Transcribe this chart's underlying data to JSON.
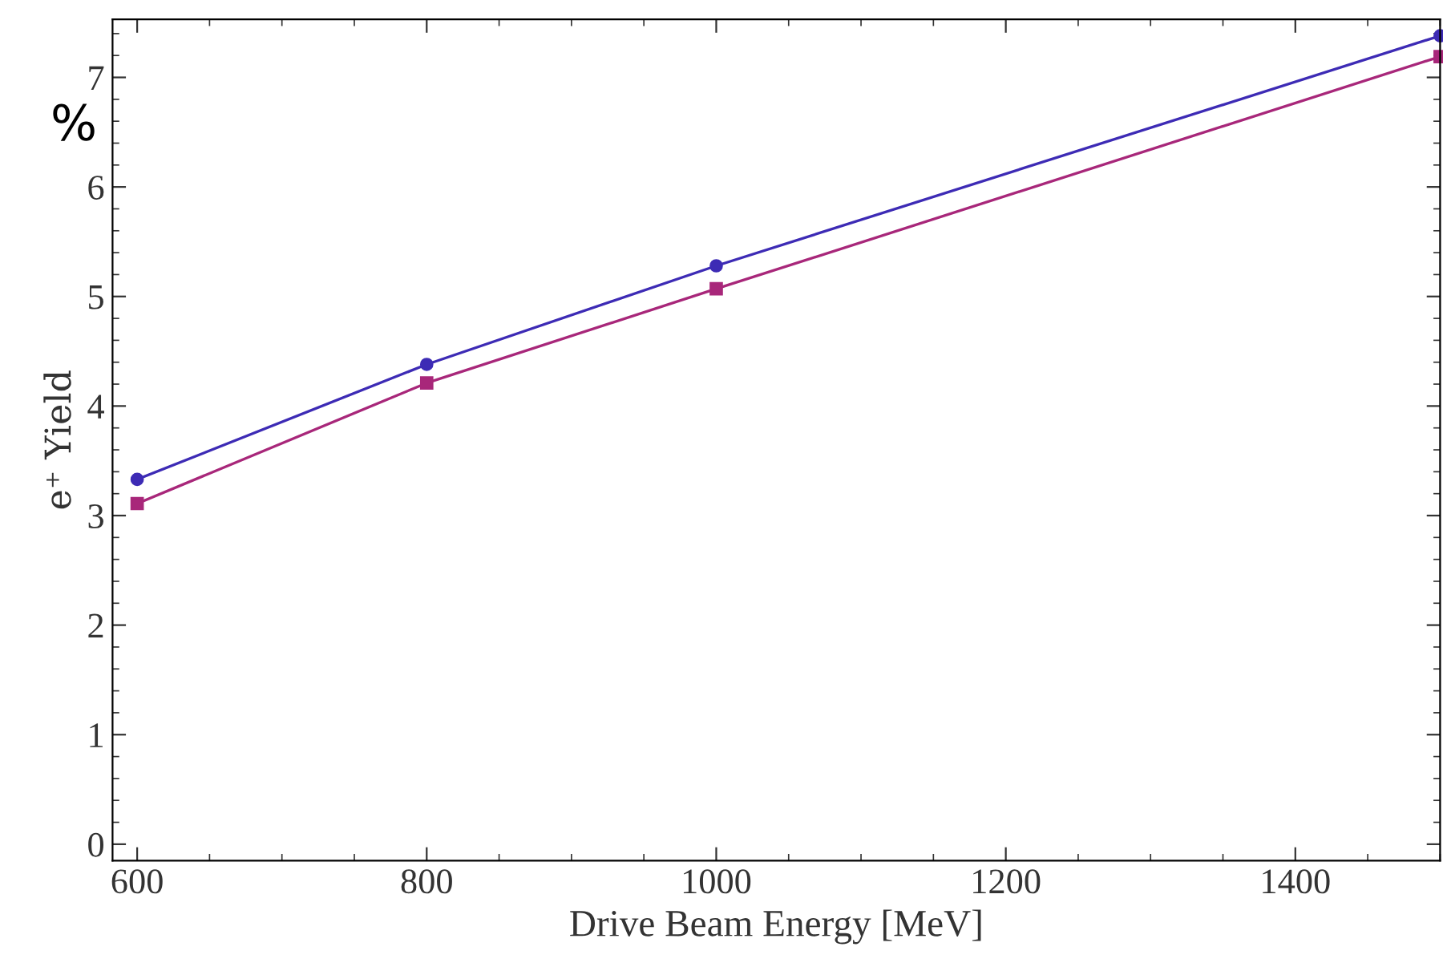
{
  "chart_data": {
    "type": "line",
    "xlabel": "Drive Beam Energy [MeV]",
    "ylabel": "e⁺ Yield",
    "annotations": [
      "%"
    ],
    "x": [
      600,
      800,
      1000,
      1500
    ],
    "series": [
      {
        "color": "#3d2bb5",
        "marker": "circle",
        "values": [
          3.33,
          4.38,
          5.28,
          7.38
        ]
      },
      {
        "color": "#a8277a",
        "marker": "square",
        "values": [
          3.11,
          4.21,
          5.07,
          7.19
        ]
      }
    ],
    "xlim": [
      583,
      1500
    ],
    "ylim": [
      -0.15,
      7.53
    ],
    "xticks": [
      600,
      800,
      1000,
      1200,
      1400
    ],
    "yticks": [
      0,
      1,
      2,
      3,
      4,
      5,
      6,
      7
    ],
    "grid": false,
    "legend": false
  }
}
